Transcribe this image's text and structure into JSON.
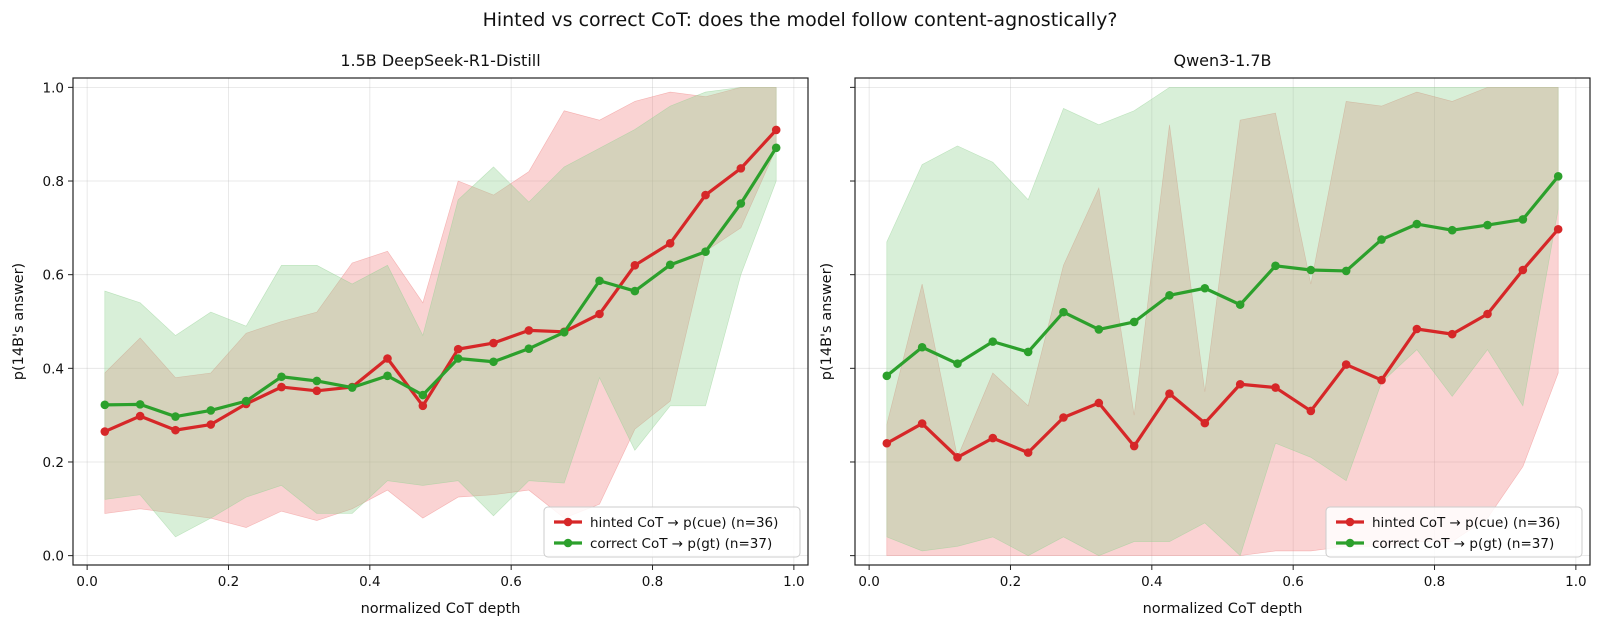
{
  "figure": {
    "title": "Hinted vs correct CoT: does the model follow content-agnostically?"
  },
  "colors": {
    "hinted": "#d62728",
    "correct": "#2ca02c",
    "hinted_fill": "#f08080",
    "correct_fill": "#8fd18f"
  },
  "chart_data": [
    {
      "type": "line",
      "title": "1.5B DeepSeek-R1-Distill",
      "xlabel": "normalized CoT depth",
      "ylabel": "p(14B's answer)",
      "xlim": [
        -0.02,
        1.02
      ],
      "ylim": [
        -0.02,
        1.02
      ],
      "xticks": [
        0.0,
        0.2,
        0.4,
        0.6,
        0.8,
        1.0
      ],
      "xtick_labels": [
        "0.0",
        "0.2",
        "0.4",
        "0.6",
        "0.8",
        "1.0"
      ],
      "yticks": [
        0.0,
        0.2,
        0.4,
        0.6,
        0.8,
        1.0
      ],
      "ytick_labels": [
        "0.0",
        "0.2",
        "0.4",
        "0.6",
        "0.8",
        "1.0"
      ],
      "grid": true,
      "legend": "lower right",
      "x": [
        0.025,
        0.075,
        0.125,
        0.175,
        0.225,
        0.275,
        0.325,
        0.375,
        0.425,
        0.475,
        0.525,
        0.575,
        0.625,
        0.675,
        0.725,
        0.775,
        0.825,
        0.875,
        0.925,
        0.975
      ],
      "series": [
        {
          "name": "hinted CoT → p(cue)  (n=36)",
          "key": "hinted",
          "values": [
            0.265,
            0.298,
            0.268,
            0.28,
            0.324,
            0.36,
            0.352,
            0.36,
            0.421,
            0.32,
            0.441,
            0.454,
            0.481,
            0.478,
            0.516,
            0.62,
            0.667,
            0.77,
            0.827,
            0.909
          ],
          "band_low": [
            0.09,
            0.1,
            0.09,
            0.08,
            0.06,
            0.095,
            0.075,
            0.1,
            0.14,
            0.08,
            0.125,
            0.13,
            0.14,
            0.08,
            0.11,
            0.27,
            0.33,
            0.65,
            0.7,
            0.87
          ],
          "band_high": [
            0.39,
            0.465,
            0.38,
            0.39,
            0.475,
            0.5,
            0.52,
            0.625,
            0.65,
            0.54,
            0.8,
            0.77,
            0.82,
            0.95,
            0.93,
            0.97,
            0.99,
            0.98,
            1.0,
            1.0
          ]
        },
        {
          "name": "correct CoT → p(gt)  (n=37)",
          "key": "correct",
          "values": [
            0.322,
            0.323,
            0.297,
            0.31,
            0.33,
            0.382,
            0.373,
            0.359,
            0.384,
            0.343,
            0.421,
            0.414,
            0.442,
            0.477,
            0.587,
            0.565,
            0.621,
            0.649,
            0.752,
            0.871
          ],
          "band_low": [
            0.12,
            0.13,
            0.04,
            0.08,
            0.125,
            0.15,
            0.09,
            0.09,
            0.16,
            0.15,
            0.16,
            0.085,
            0.16,
            0.155,
            0.38,
            0.225,
            0.32,
            0.32,
            0.6,
            0.8
          ],
          "band_high": [
            0.565,
            0.54,
            0.47,
            0.52,
            0.49,
            0.62,
            0.62,
            0.58,
            0.62,
            0.47,
            0.76,
            0.83,
            0.755,
            0.83,
            0.87,
            0.91,
            0.96,
            0.99,
            1.0,
            1.0
          ]
        }
      ]
    },
    {
      "type": "line",
      "title": "Qwen3-1.7B",
      "xlabel": "normalized CoT depth",
      "ylabel": "p(14B's answer)",
      "xlim": [
        -0.02,
        1.02
      ],
      "ylim": [
        -0.02,
        1.02
      ],
      "xticks": [
        0.0,
        0.2,
        0.4,
        0.6,
        0.8,
        1.0
      ],
      "xtick_labels": [
        "0.0",
        "0.2",
        "0.4",
        "0.6",
        "0.8",
        "1.0"
      ],
      "yticks": [
        0.0,
        0.2,
        0.4,
        0.6,
        0.8,
        1.0
      ],
      "ytick_labels": [
        "",
        "",
        "",
        "",
        "",
        ""
      ],
      "grid": true,
      "legend": "lower right",
      "x": [
        0.025,
        0.075,
        0.125,
        0.175,
        0.225,
        0.275,
        0.325,
        0.375,
        0.425,
        0.475,
        0.525,
        0.575,
        0.625,
        0.675,
        0.725,
        0.775,
        0.825,
        0.875,
        0.925,
        0.975
      ],
      "series": [
        {
          "name": "hinted CoT → p(cue)  (n=36)",
          "key": "hinted",
          "values": [
            0.24,
            0.282,
            0.21,
            0.251,
            0.22,
            0.295,
            0.326,
            0.234,
            0.346,
            0.283,
            0.366,
            0.359,
            0.309,
            0.408,
            0.375,
            0.484,
            0.473,
            0.516,
            0.61,
            0.697
          ],
          "band_low": [
            0.0,
            0.0,
            0.0,
            0.0,
            0.0,
            0.0,
            0.0,
            0.0,
            0.0,
            0.0,
            0.0,
            0.01,
            0.01,
            0.02,
            0.02,
            0.03,
            0.03,
            0.08,
            0.19,
            0.39
          ],
          "band_high": [
            0.28,
            0.58,
            0.21,
            0.39,
            0.32,
            0.62,
            0.785,
            0.3,
            0.92,
            0.35,
            0.93,
            0.945,
            0.58,
            0.97,
            0.96,
            0.99,
            0.97,
            1.0,
            1.0,
            1.0
          ]
        },
        {
          "name": "correct CoT → p(gt)  (n=37)",
          "key": "correct",
          "values": [
            0.384,
            0.445,
            0.41,
            0.457,
            0.435,
            0.52,
            0.483,
            0.499,
            0.556,
            0.571,
            0.536,
            0.619,
            0.61,
            0.608,
            0.675,
            0.708,
            0.695,
            0.706,
            0.718,
            0.81
          ],
          "band_low": [
            0.04,
            0.01,
            0.02,
            0.04,
            0.0,
            0.04,
            0.0,
            0.03,
            0.03,
            0.07,
            0.0,
            0.24,
            0.21,
            0.16,
            0.37,
            0.44,
            0.34,
            0.44,
            0.32,
            0.74
          ],
          "band_high": [
            0.67,
            0.835,
            0.875,
            0.84,
            0.76,
            0.955,
            0.92,
            0.95,
            1.0,
            1.0,
            1.0,
            1.0,
            1.0,
            1.0,
            1.0,
            1.0,
            1.0,
            1.0,
            1.0,
            1.0
          ]
        }
      ]
    }
  ]
}
